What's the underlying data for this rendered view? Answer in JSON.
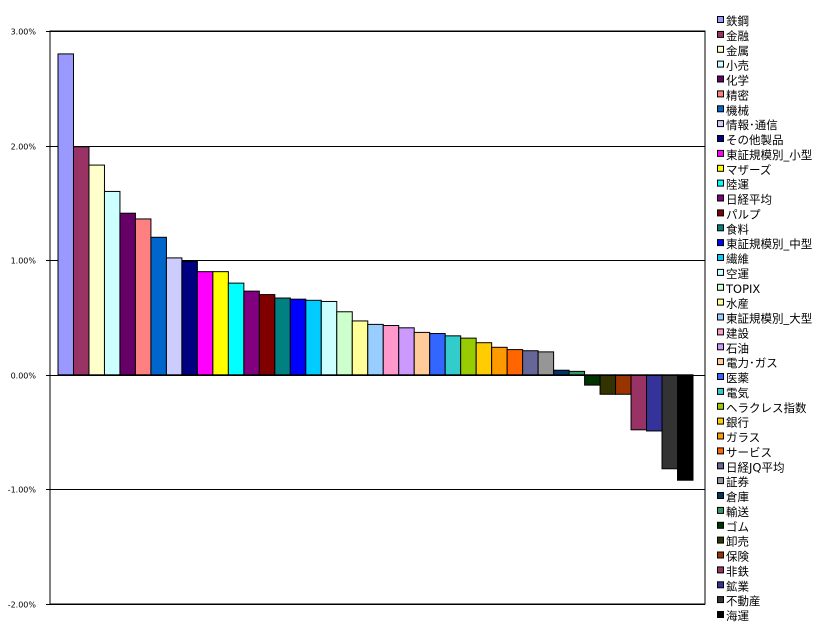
{
  "chart_data": {
    "type": "bar",
    "title": "",
    "xlabel": "",
    "ylabel": "",
    "ylim": [
      -2.0,
      3.0
    ],
    "yticks": [
      "3.00%",
      "2.00%",
      "1.00%",
      "0.00%",
      "-1.00%",
      "-2.00%"
    ],
    "ytick_values": [
      3,
      2,
      1,
      0,
      -1,
      -2
    ],
    "grid": "horizontal major gridlines",
    "legend_position": "right",
    "categories": [
      "鉄鋼",
      "金融",
      "金属",
      "小売",
      "化学",
      "精密",
      "機械",
      "情報･通信",
      "その他製品",
      "東証規模別_小型",
      "マザーズ",
      "陸運",
      "日経平均",
      "パルプ",
      "食料",
      "東証規模別_中型",
      "繊維",
      "空運",
      "TOPIX",
      "水産",
      "東証規模別_大型",
      "建設",
      "石油",
      "電力･ガス",
      "医薬",
      "電気",
      "ヘラクレス指数",
      "銀行",
      "ガラス",
      "サービス",
      "日経JQ平均",
      "証券",
      "倉庫",
      "輸送",
      "ゴム",
      "卸売",
      "保険",
      "非鉄",
      "鉱業",
      "不動産",
      "海運"
    ],
    "values": [
      2.8,
      1.99,
      1.83,
      1.6,
      1.41,
      1.36,
      1.2,
      1.02,
      0.99,
      0.9,
      0.9,
      0.8,
      0.73,
      0.7,
      0.67,
      0.66,
      0.65,
      0.64,
      0.55,
      0.47,
      0.44,
      0.43,
      0.41,
      0.37,
      0.36,
      0.34,
      0.32,
      0.28,
      0.24,
      0.22,
      0.21,
      0.2,
      0.04,
      0.03,
      -0.09,
      -0.17,
      -0.17,
      -0.48,
      -0.49,
      -0.82,
      -0.92
    ],
    "unit": "%",
    "colors": [
      "#9999FF",
      "#993366",
      "#FFFFCC",
      "#CCFFFF",
      "#660066",
      "#FF8080",
      "#0066CC",
      "#CCCCFF",
      "#000080",
      "#FF00FF",
      "#FFFF00",
      "#00FFFF",
      "#800080",
      "#800000",
      "#008080",
      "#0000FF",
      "#00CCFF",
      "#CCFFFF",
      "#CCFFCC",
      "#FFFF99",
      "#99CCFF",
      "#FF99CC",
      "#CC99FF",
      "#FFCC99",
      "#3366FF",
      "#33CCCC",
      "#99CC00",
      "#FFCC00",
      "#FF9900",
      "#FF6600",
      "#666699",
      "#969696",
      "#003366",
      "#339966",
      "#003300",
      "#333300",
      "#993300",
      "#993366",
      "#333399",
      "#333333",
      "#000000"
    ]
  }
}
